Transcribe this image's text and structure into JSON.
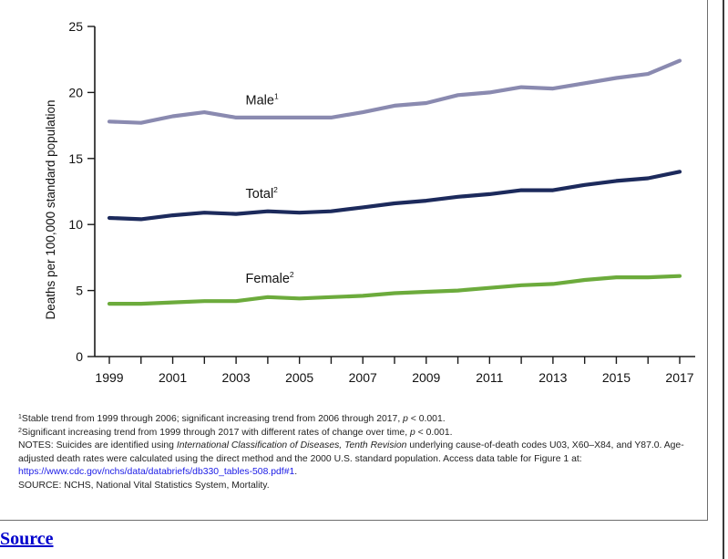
{
  "colors": {
    "male": "#8a8ab0",
    "total": "#1c2a5c",
    "female": "#6cab3c",
    "axis": "#1a1a1a",
    "link": "#1a1ae6",
    "source_link": "#0000cc"
  },
  "chart_data": {
    "type": "line",
    "ylabel": "Deaths per 100,000 standard population",
    "xlabel": "",
    "ylim": [
      0,
      25
    ],
    "xlim": [
      1999,
      2017
    ],
    "yticks": [
      0,
      5,
      10,
      15,
      20,
      25
    ],
    "xtick_labels": [
      "1999",
      "2001",
      "2003",
      "2005",
      "2007",
      "2009",
      "2011",
      "2013",
      "2015",
      "2017"
    ],
    "x": [
      1999,
      2000,
      2001,
      2002,
      2003,
      2004,
      2005,
      2006,
      2007,
      2008,
      2009,
      2010,
      2011,
      2012,
      2013,
      2014,
      2015,
      2016,
      2017
    ],
    "grid": false,
    "series": [
      {
        "key": "male",
        "name": "Male",
        "sup": "1",
        "values": [
          17.8,
          17.7,
          18.2,
          18.5,
          18.1,
          18.1,
          18.1,
          18.1,
          18.5,
          19.0,
          19.2,
          19.8,
          20.0,
          20.4,
          20.3,
          20.7,
          21.1,
          21.4,
          22.4
        ]
      },
      {
        "key": "total",
        "name": "Total",
        "sup": "2",
        "values": [
          10.5,
          10.4,
          10.7,
          10.9,
          10.8,
          11.0,
          10.9,
          11.0,
          11.3,
          11.6,
          11.8,
          12.1,
          12.3,
          12.6,
          12.6,
          13.0,
          13.3,
          13.5,
          14.0
        ]
      },
      {
        "key": "female",
        "name": "Female",
        "sup": "2",
        "values": [
          4.0,
          4.0,
          4.1,
          4.2,
          4.2,
          4.5,
          4.4,
          4.5,
          4.6,
          4.8,
          4.9,
          5.0,
          5.2,
          5.4,
          5.5,
          5.8,
          6.0,
          6.0,
          6.1
        ]
      }
    ]
  },
  "footnotes": {
    "note1_sup": "1",
    "note1_text": "Stable trend from 1999 through 2006; significant increasing trend from 2006 through 2017, ",
    "note1_p": "p",
    "note1_end": " < 0.001.",
    "note2_sup": "2",
    "note2_text": "Significant increasing trend from 1999 through 2017 with different rates of change over time, ",
    "note2_p": "p",
    "note2_end": " < 0.001.",
    "notes_a": "NOTES: Suicides are identified using ",
    "notes_icd": "International Classification of Diseases, Tenth Revision",
    "notes_b": " underlying cause-of-death codes U03, X60–X84, and Y87.0. Age-adjusted death rates were calculated using the direct method and the 2000 U.S. standard population. Access data table for Figure 1 at: ",
    "notes_url": "https://www.cdc.gov/nchs/data/databriefs/db330_tables-508.pdf#1",
    "notes_end": ".",
    "source": "SOURCE: NCHS, National Vital Statistics System, Mortality."
  },
  "source_link": "Source"
}
